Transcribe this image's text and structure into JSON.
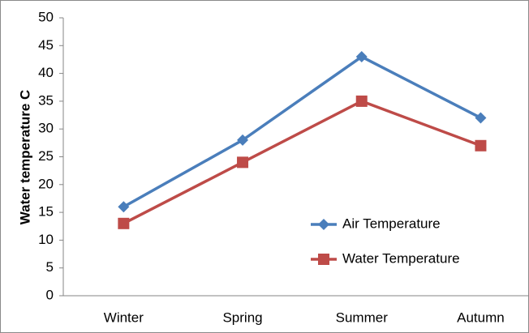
{
  "chart_data": {
    "type": "line",
    "y_label": "Water temperature C",
    "categories": [
      "Winter",
      "Spring",
      "Summer",
      "Autumn"
    ],
    "series": [
      {
        "name": "Air Temperature",
        "color": "#4a7ebb",
        "marker": "diamond",
        "values": [
          16,
          28,
          43,
          32
        ]
      },
      {
        "name": "Water Temperature",
        "color": "#be4b48",
        "marker": "square",
        "values": [
          13,
          24,
          35,
          27
        ]
      }
    ],
    "ylim": [
      0,
      50
    ],
    "yticks": [
      0,
      5,
      10,
      15,
      20,
      25,
      30,
      35,
      40,
      45,
      50
    ],
    "grid": false,
    "legend": "right"
  }
}
